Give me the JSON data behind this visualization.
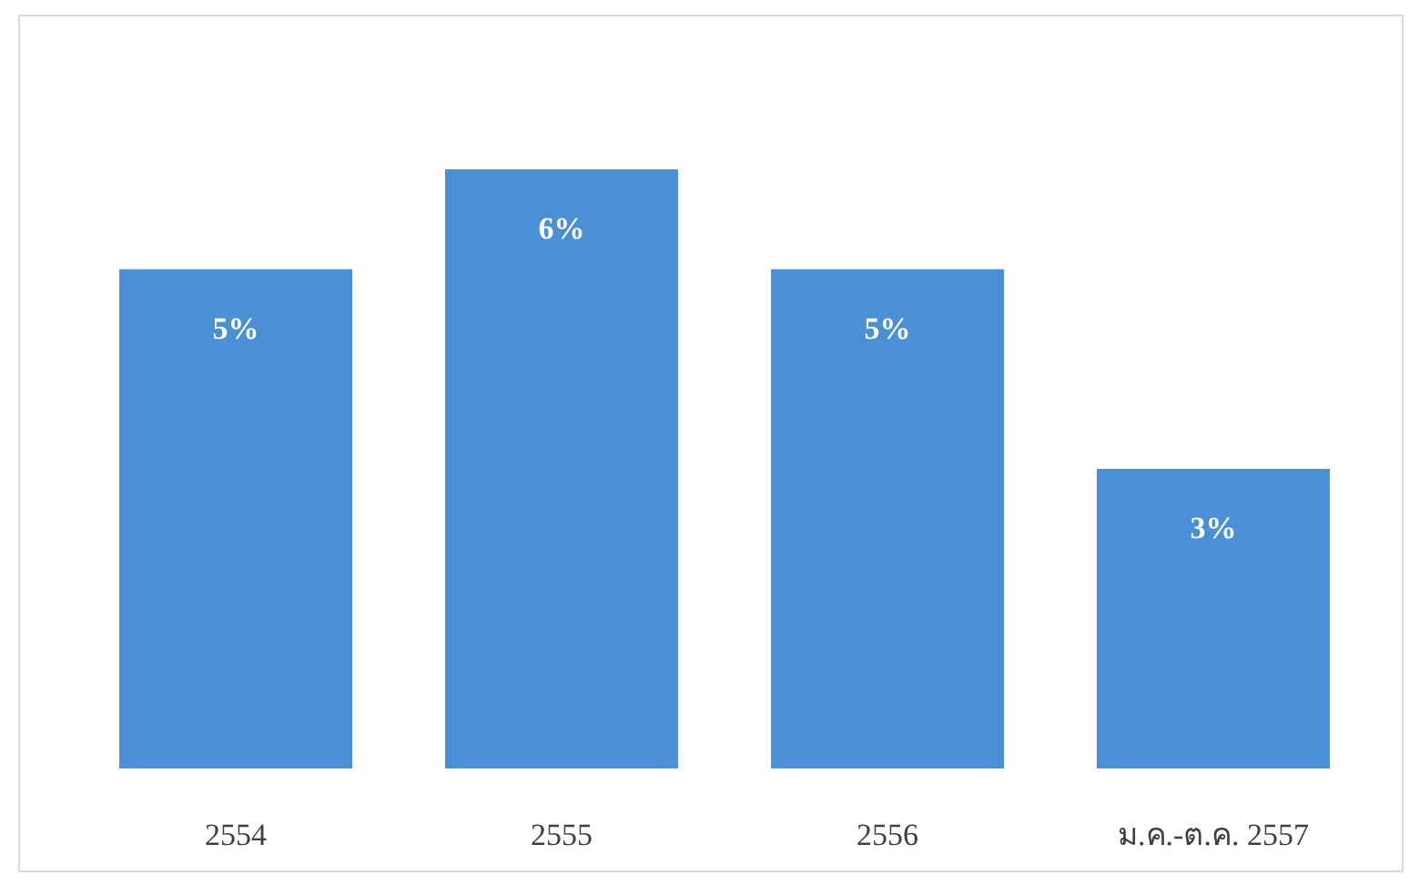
{
  "chart_data": {
    "type": "bar",
    "categories": [
      "2554",
      "2555",
      "2556",
      "ม.ค.-ต.ค. 2557"
    ],
    "values": [
      5,
      6,
      5,
      3
    ],
    "value_labels": [
      "5%",
      "6%",
      "5%",
      "3%"
    ],
    "color": "#4a90d4"
  }
}
